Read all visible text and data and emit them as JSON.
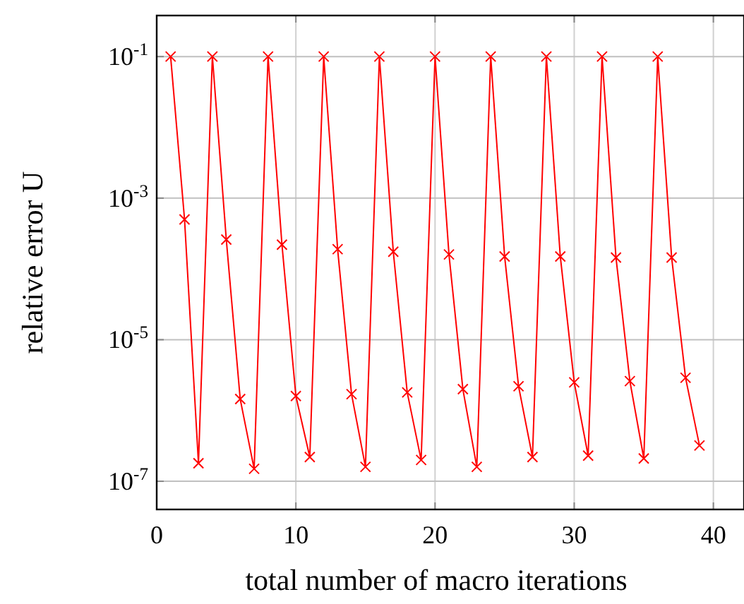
{
  "chart_data": {
    "type": "line",
    "xlabel": "total number of macro iterations",
    "ylabel": "relative error U",
    "log": "y",
    "grid": true,
    "marker": "cross",
    "line_style": "solid",
    "xlim": [
      0,
      42.2
    ],
    "xticks": [
      0,
      10,
      20,
      30,
      40
    ],
    "ylim": [
      4e-08,
      0.38
    ],
    "yticks": [
      {
        "value": 1e-07,
        "label": "10$^{-7}$"
      },
      {
        "value": 1e-05,
        "label": "10$^{-5}$"
      },
      {
        "value": 0.001,
        "label": "10$^{-3}$"
      },
      {
        "value": 0.1,
        "label": "10$^{-1}$"
      }
    ],
    "x": [
      1,
      2,
      3,
      4,
      5,
      6,
      7,
      8,
      9,
      10,
      11,
      12,
      13,
      14,
      15,
      16,
      17,
      18,
      19,
      20,
      21,
      22,
      23,
      24,
      25,
      26,
      27,
      28,
      29,
      30,
      31,
      32,
      33,
      34,
      35,
      36,
      37,
      38,
      39
    ],
    "series": [
      {
        "color": "#ff0000",
        "values": [
          0.1,
          0.0005,
          1.8e-07,
          0.1,
          0.00026,
          1.45e-06,
          1.5e-07,
          0.1,
          0.00022,
          1.6e-06,
          2.2e-07,
          0.1,
          0.00019,
          1.7e-06,
          1.6e-07,
          0.1,
          0.000175,
          1.8e-06,
          2e-07,
          0.1,
          0.00016,
          2e-06,
          1.6e-07,
          0.1,
          0.00015,
          2.2e-06,
          2.2e-07,
          0.1,
          0.00015,
          2.5e-06,
          2.3e-07,
          0.1,
          0.000145,
          2.6e-06,
          2.1e-07,
          0.1,
          0.000145,
          2.9e-06,
          3.2e-07
        ]
      }
    ]
  }
}
